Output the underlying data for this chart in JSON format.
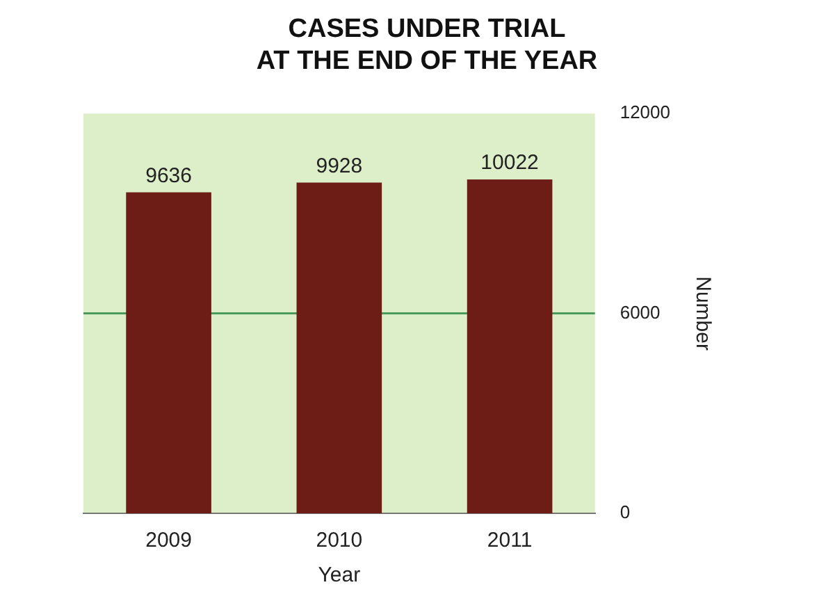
{
  "chart_data": {
    "type": "bar",
    "title": [
      "CASES UNDER TRIAL",
      "AT THE END OF THE YEAR"
    ],
    "xlabel": "Year",
    "ylabel": "Number",
    "categories": [
      "2009",
      "2010",
      "2011"
    ],
    "values": [
      9636,
      9928,
      10022
    ],
    "color": "#6e1c16",
    "ylim": [
      0,
      12000
    ],
    "yticks": [
      0,
      6000,
      12000
    ],
    "ref_lines": [
      {
        "axis": "y",
        "value": 6000,
        "color": "#4a9a5a"
      }
    ],
    "data_labels": true
  }
}
